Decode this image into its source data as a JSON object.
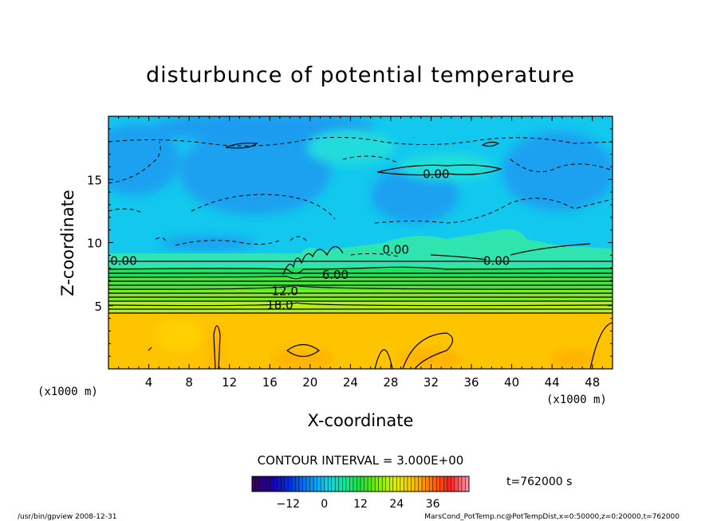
{
  "chart_data": {
    "type": "contour",
    "title": "disturbunce of potential temperature",
    "xlabel": "X-coordinate",
    "ylabel": "Z-coordinate",
    "x_unit": "(x1000 m)",
    "y_unit": "(x1000 m)",
    "xlim": [
      0,
      50
    ],
    "ylim": [
      0,
      20
    ],
    "x_ticks": [
      4,
      8,
      12,
      16,
      20,
      24,
      28,
      32,
      36,
      40,
      44,
      48
    ],
    "y_ticks": [
      5,
      10,
      15
    ],
    "contour_interval_text": "CONTOUR INTERVAL = 3.000E+00",
    "contour_labels": [
      {
        "text": "0.00",
        "x": 32.5,
        "z": 15.5
      },
      {
        "text": "0.00",
        "x": 28.5,
        "z": 9.5
      },
      {
        "text": "0.00",
        "x": 38.5,
        "z": 8.6
      },
      {
        "text": "0.00",
        "x": 1.5,
        "z": 8.6
      },
      {
        "text": "6.00",
        "x": 22.5,
        "z": 7.5
      },
      {
        "text": "12.0",
        "x": 17.5,
        "z": 6.2
      },
      {
        "text": "18.0",
        "x": 17.0,
        "z": 5.1
      }
    ],
    "colorbar": {
      "ticks": [
        -12,
        0,
        12,
        24,
        36
      ],
      "range": [
        -24,
        48
      ],
      "colors": [
        "#3b0060",
        "#1a00a8",
        "#0030e0",
        "#0a80f0",
        "#10c8f0",
        "#10e8a0",
        "#20e040",
        "#80f000",
        "#e0f000",
        "#ffc000",
        "#ff7000",
        "#ff2020",
        "#ff90a0"
      ]
    },
    "time_text": "t=762000 s"
  },
  "footer": {
    "left": "/usr/bin/gpview   2008-12-31",
    "right": "MarsCond_PotTemp.nc@PotTempDist,x=0:50000,z=0:20000,t=762000"
  }
}
